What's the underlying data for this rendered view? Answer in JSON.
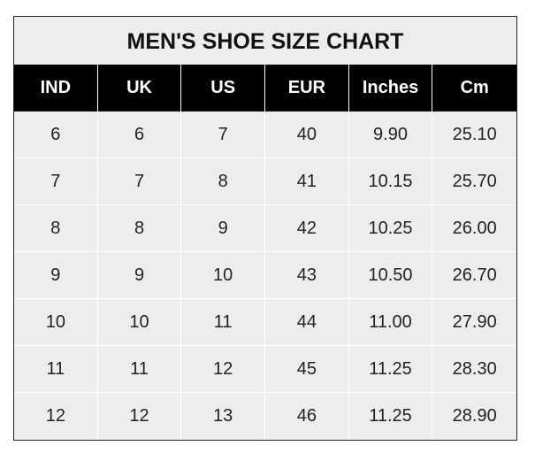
{
  "chart_data": {
    "type": "table",
    "title": "MEN'S SHOE SIZE CHART",
    "columns": [
      "IND",
      "UK",
      "US",
      "EUR",
      "Inches",
      "Cm"
    ],
    "rows": [
      [
        "6",
        "6",
        "7",
        "40",
        "9.90",
        "25.10"
      ],
      [
        "7",
        "7",
        "8",
        "41",
        "10.15",
        "25.70"
      ],
      [
        "8",
        "8",
        "9",
        "42",
        "10.25",
        "26.00"
      ],
      [
        "9",
        "9",
        "10",
        "43",
        "10.50",
        "26.70"
      ],
      [
        "10",
        "10",
        "11",
        "44",
        "11.00",
        "27.90"
      ],
      [
        "11",
        "11",
        "12",
        "45",
        "11.25",
        "28.30"
      ],
      [
        "12",
        "12",
        "13",
        "46",
        "11.25",
        "28.90"
      ]
    ]
  }
}
